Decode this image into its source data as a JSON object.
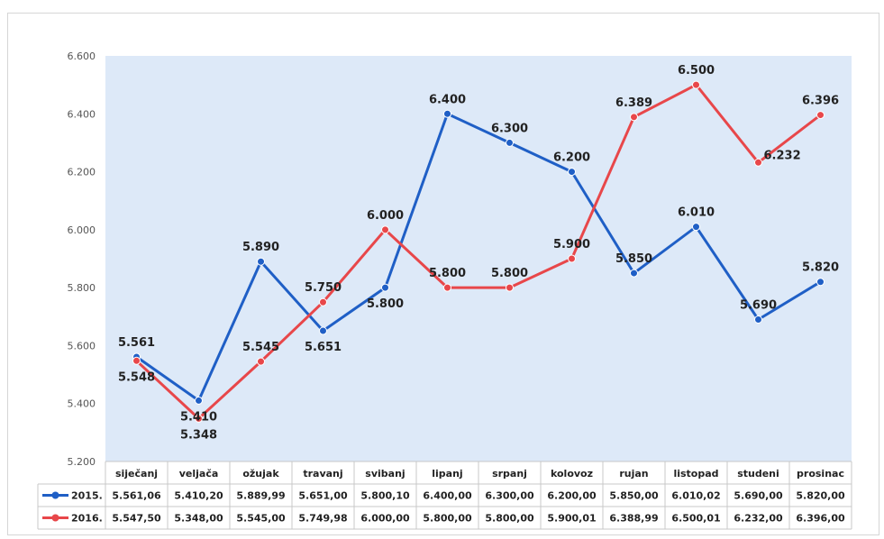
{
  "chart_data": {
    "type": "line",
    "categories": [
      "siječanj",
      "veljača",
      "ožujak",
      "travanj",
      "svibanj",
      "lipanj",
      "srpanj",
      "kolovoz",
      "rujan",
      "listopad",
      "studeni",
      "prosinac"
    ],
    "ylim": [
      5200,
      6600
    ],
    "yticks": [
      "5.200",
      "5.400",
      "5.600",
      "5.800",
      "6.000",
      "6.200",
      "6.400",
      "6.600"
    ],
    "ytick_values": [
      5200,
      5400,
      5600,
      5800,
      6000,
      6200,
      6400,
      6600
    ],
    "grid": false,
    "legend": "table-bottom",
    "series": [
      {
        "name": "2015.",
        "color": "#1f5fc6",
        "values": [
          5561.06,
          5410.2,
          5889.99,
          5651.0,
          5800.1,
          6400.0,
          6300.0,
          6200.0,
          5850.0,
          6010.02,
          5690.0,
          5820.0
        ],
        "labels": [
          "5.561",
          "5.410",
          "5.890",
          "5.651",
          "5.800",
          "6.400",
          "6.300",
          "6.200",
          "5.850",
          "6.010",
          "5.690",
          "5.820"
        ],
        "table": [
          "5.561,06",
          "5.410,20",
          "5.889,99",
          "5.651,00",
          "5.800,10",
          "6.400,00",
          "6.300,00",
          "6.200,00",
          "5.850,00",
          "6.010,02",
          "5.690,00",
          "5.820,00"
        ]
      },
      {
        "name": "2016.",
        "color": "#e8474a",
        "values": [
          5547.5,
          5348.0,
          5545.0,
          5749.98,
          6000.0,
          5800.0,
          5800.0,
          5900.01,
          6388.99,
          6500.01,
          6232.0,
          6396.0
        ],
        "labels": [
          "5.548",
          "5.348",
          "5.545",
          "5.750",
          "6.000",
          "5.800",
          "5.800",
          "5.900",
          "6.389",
          "6.500",
          "6.232",
          "6.396"
        ],
        "table": [
          "5.547,50",
          "5.348,00",
          "5.545,00",
          "5.749,98",
          "6.000,00",
          "5.800,00",
          "5.800,00",
          "5.900,01",
          "6.388,99",
          "6.500,01",
          "6.232,00",
          "6.396,00"
        ]
      }
    ]
  }
}
